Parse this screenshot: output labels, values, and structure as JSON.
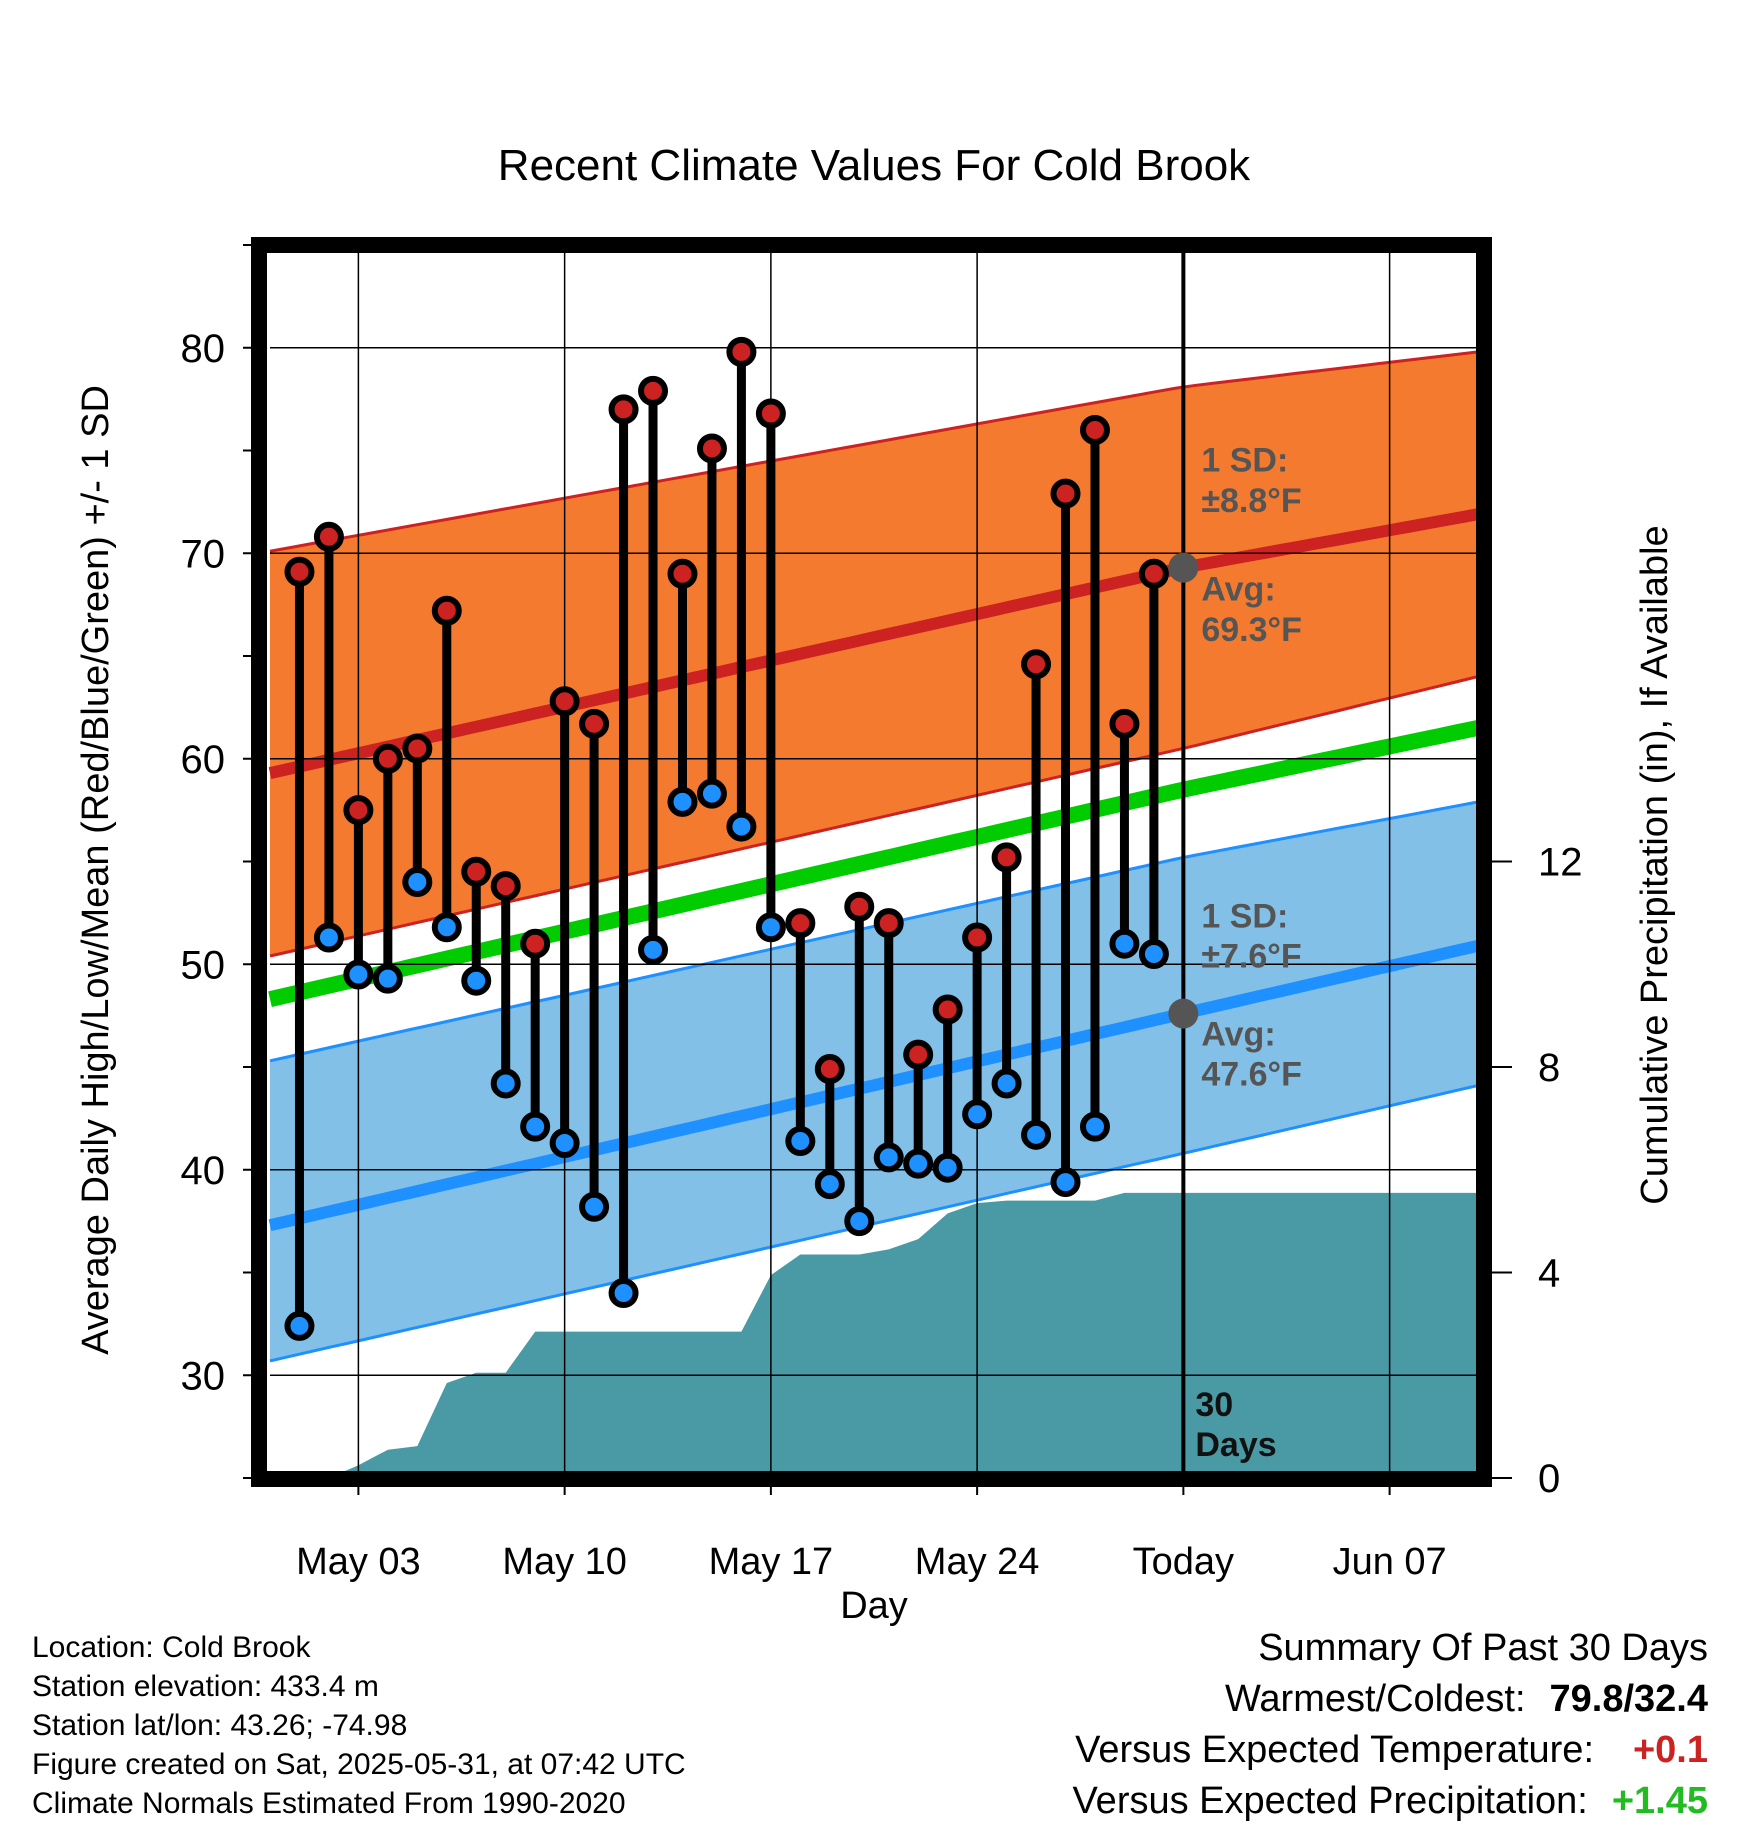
{
  "chart_data": {
    "type": "line",
    "title": "Recent Climate Values For Cold Brook",
    "xlabel": "Day",
    "ylabel": "Average Daily High/Low/Mean (Red/Blue/Green) +/- 1 SD",
    "y2label": "Cumulative Precipitation (in), If Available",
    "x_range": [
      "2025-04-30",
      "2025-06-10"
    ],
    "ylim": [
      25,
      85
    ],
    "y2lim": [
      0,
      24
    ],
    "y_ticks": [
      30,
      40,
      50,
      60,
      70,
      80
    ],
    "y2_ticks": [
      0,
      4,
      8,
      12
    ],
    "x_ticks": [
      {
        "date": "2025-05-03",
        "label": "May 03"
      },
      {
        "date": "2025-05-10",
        "label": "May 10"
      },
      {
        "date": "2025-05-17",
        "label": "May 17"
      },
      {
        "date": "2025-05-24",
        "label": "May 24"
      },
      {
        "date": "2025-05-31",
        "label": "Today"
      },
      {
        "date": "2025-06-07",
        "label": "Jun 07"
      }
    ],
    "grid": true,
    "today": "2025-05-31",
    "today_label": "30\nDays",
    "normals": {
      "dates": [
        "2025-04-30",
        "2025-05-31",
        "2025-06-10"
      ],
      "avg_high": [
        59.3,
        69.3,
        71.9
      ],
      "high_sd_upper": [
        70.1,
        78.1,
        79.8
      ],
      "high_sd_lower": [
        50.4,
        60.5,
        64.0
      ],
      "avg_low": [
        37.3,
        47.6,
        50.9
      ],
      "low_sd_upper": [
        45.3,
        55.2,
        57.9
      ],
      "low_sd_lower": [
        30.7,
        40.8,
        44.1
      ],
      "avg_mean": [
        48.3,
        58.5,
        61.5
      ]
    },
    "high_sd_label": "1 SD:\n±8.8°F",
    "high_avg_label": "Avg:\n69.3°F",
    "low_sd_label": "1 SD:\n±7.6°F",
    "low_avg_label": "Avg:\n47.6°F",
    "series": [
      {
        "name": "High",
        "color": "#cc2222",
        "dates": [
          "2025-05-01",
          "2025-05-02",
          "2025-05-03",
          "2025-05-04",
          "2025-05-05",
          "2025-05-06",
          "2025-05-07",
          "2025-05-08",
          "2025-05-09",
          "2025-05-10",
          "2025-05-11",
          "2025-05-12",
          "2025-05-13",
          "2025-05-14",
          "2025-05-15",
          "2025-05-16",
          "2025-05-17",
          "2025-05-18",
          "2025-05-19",
          "2025-05-20",
          "2025-05-21",
          "2025-05-22",
          "2025-05-23",
          "2025-05-24",
          "2025-05-25",
          "2025-05-26",
          "2025-05-27",
          "2025-05-28",
          "2025-05-29",
          "2025-05-30"
        ],
        "values": [
          69.1,
          70.8,
          57.5,
          60.0,
          60.5,
          67.2,
          54.5,
          53.8,
          51.0,
          62.8,
          61.7,
          77.0,
          77.9,
          69.0,
          75.1,
          79.8,
          76.8,
          52.0,
          44.9,
          52.8,
          52.0,
          45.6,
          47.8,
          51.3,
          55.2,
          64.6,
          72.9,
          76.0,
          61.7,
          69.0
        ]
      },
      {
        "name": "Low",
        "color": "#1e90ff",
        "dates": [
          "2025-05-01",
          "2025-05-02",
          "2025-05-03",
          "2025-05-04",
          "2025-05-05",
          "2025-05-06",
          "2025-05-07",
          "2025-05-08",
          "2025-05-09",
          "2025-05-10",
          "2025-05-11",
          "2025-05-12",
          "2025-05-13",
          "2025-05-14",
          "2025-05-15",
          "2025-05-16",
          "2025-05-17",
          "2025-05-18",
          "2025-05-19",
          "2025-05-20",
          "2025-05-21",
          "2025-05-22",
          "2025-05-23",
          "2025-05-24",
          "2025-05-25",
          "2025-05-26",
          "2025-05-27",
          "2025-05-28",
          "2025-05-29",
          "2025-05-30"
        ],
        "values": [
          32.4,
          51.3,
          49.5,
          49.3,
          54.0,
          51.8,
          49.2,
          44.2,
          42.1,
          41.3,
          38.2,
          34.0,
          50.7,
          57.9,
          58.3,
          56.7,
          51.8,
          41.4,
          39.3,
          37.5,
          40.6,
          40.3,
          40.1,
          42.7,
          44.2,
          41.7,
          39.4,
          42.1,
          51.0,
          50.5
        ]
      },
      {
        "name": "Cumulative Precipitation",
        "axis": "y2",
        "color": "#4a9aa5",
        "dates": [
          "2025-05-01",
          "2025-05-02",
          "2025-05-03",
          "2025-05-04",
          "2025-05-05",
          "2025-05-06",
          "2025-05-07",
          "2025-05-08",
          "2025-05-09",
          "2025-05-10",
          "2025-05-11",
          "2025-05-12",
          "2025-05-13",
          "2025-05-14",
          "2025-05-15",
          "2025-05-16",
          "2025-05-17",
          "2025-05-18",
          "2025-05-19",
          "2025-05-20",
          "2025-05-21",
          "2025-05-22",
          "2025-05-23",
          "2025-05-24",
          "2025-05-25",
          "2025-05-26",
          "2025-05-27",
          "2025-05-28",
          "2025-05-29",
          "2025-05-30",
          "2025-05-31",
          "2025-06-10"
        ],
        "values": [
          0,
          0,
          0.25,
          0.55,
          0.62,
          1.85,
          2.05,
          2.05,
          2.85,
          2.85,
          2.85,
          2.85,
          2.85,
          2.85,
          2.85,
          2.85,
          3.95,
          4.35,
          4.35,
          4.35,
          4.45,
          4.65,
          5.15,
          5.35,
          5.4,
          5.4,
          5.4,
          5.4,
          5.55,
          5.55,
          5.55,
          5.55
        ]
      }
    ]
  },
  "footer": {
    "location": "Location: Cold Brook",
    "elevation": "Station elevation: 433.4 m",
    "latlon": "Station lat/lon: 43.26; -74.98",
    "created": "Figure created on Sat, 2025-05-31, at 07:42 UTC",
    "normals": "Climate Normals Estimated From 1990-2020"
  },
  "summary": {
    "title": "Summary Of Past 30 Days",
    "warmest_coldest_label": "Warmest/Coldest:",
    "warmest_coldest_value": "79.8/32.4",
    "temp_label": "Versus Expected Temperature:",
    "temp_value": "+0.1",
    "temp_color": "#cc2222",
    "precip_label": "Versus Expected Precipitation:",
    "precip_value": "+1.45",
    "precip_color": "#22bb22"
  },
  "colors": {
    "high_band": "#f47a30",
    "high_line": "#cc2222",
    "low_band": "#82c0e8",
    "low_line": "#1e90ff",
    "mean_line": "#00cc00",
    "precip": "#4a9aa5",
    "annotation": "#555555"
  }
}
